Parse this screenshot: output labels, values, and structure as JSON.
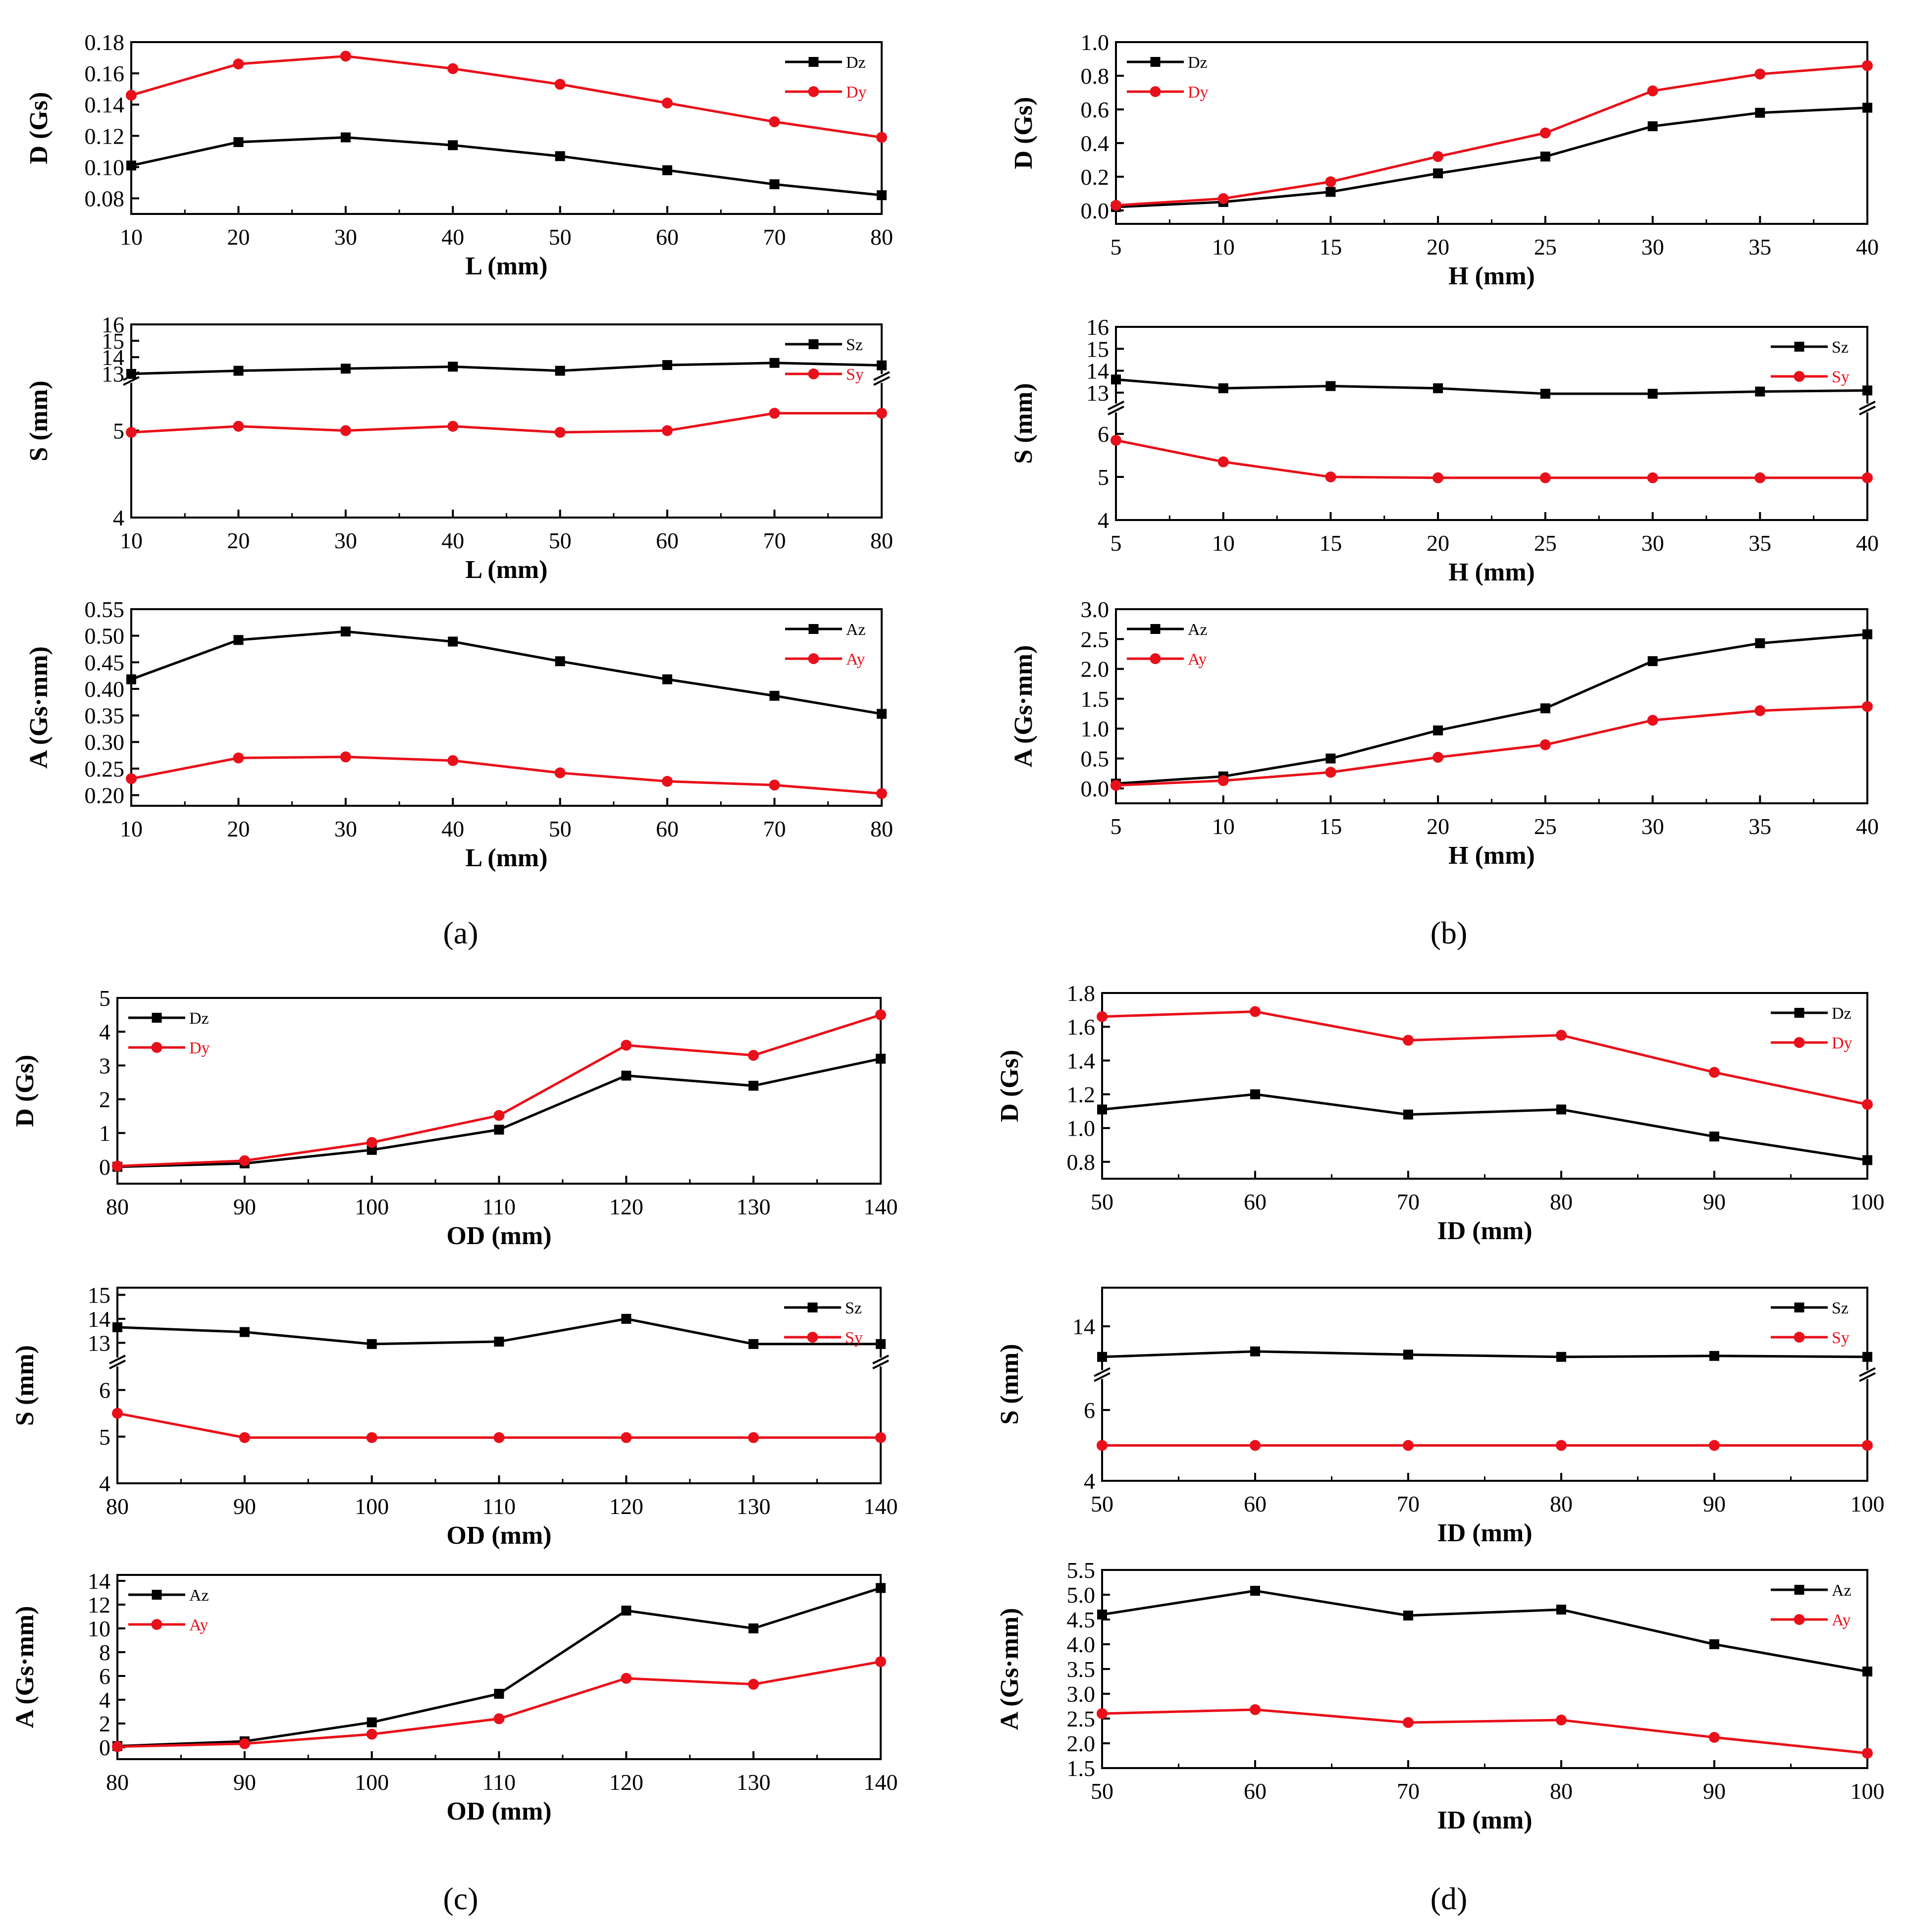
{
  "colors": {
    "series_z": "#000000",
    "series_y": "#e8101a",
    "axis": "#000000"
  },
  "captions": [
    "(a)",
    "(b)",
    "(c)",
    "(d)"
  ],
  "chart_data": [
    {
      "id": "a1",
      "type": "line",
      "panel": "(a)",
      "xlabel": "L (mm)",
      "ylabel": "D (Gs)",
      "x": [
        10,
        20,
        30,
        40,
        50,
        60,
        70,
        80
      ],
      "xlim": [
        10,
        80
      ],
      "xticks": [
        10,
        20,
        30,
        40,
        50,
        60,
        70,
        80
      ],
      "ylim": [
        0.07,
        0.18
      ],
      "yticks": [
        0.08,
        0.1,
        0.12,
        0.14,
        0.16,
        0.18
      ],
      "ytick_labels": [
        "0.08",
        "0.10",
        "0.12",
        "0.14",
        "0.16",
        "0.18"
      ],
      "legend": "top-right",
      "series": [
        {
          "name": "Dz",
          "marker": "square",
          "color": "#000000",
          "values": [
            0.101,
            0.116,
            0.119,
            0.114,
            0.107,
            0.098,
            0.089,
            0.082
          ]
        },
        {
          "name": "Dy",
          "marker": "circle",
          "color": "#e8101a",
          "values": [
            0.146,
            0.166,
            0.171,
            0.163,
            0.153,
            0.141,
            0.129,
            0.119
          ]
        }
      ]
    },
    {
      "id": "a2",
      "type": "line",
      "panel": "(a)",
      "xlabel": "L (mm)",
      "ylabel": "S (mm)",
      "x": [
        10,
        20,
        30,
        40,
        50,
        60,
        70,
        80
      ],
      "xlim": [
        10,
        80
      ],
      "xticks": [
        10,
        20,
        30,
        40,
        50,
        60,
        70,
        80
      ],
      "broken_axis": true,
      "lower_range": [
        4,
        5.6
      ],
      "upper_range": [
        12.7,
        16
      ],
      "lower_ticks": [
        4,
        5
      ],
      "upper_ticks": [
        13,
        14,
        15,
        16
      ],
      "legend": "top-right",
      "series": [
        {
          "name": "Sz",
          "marker": "square",
          "color": "#000000",
          "values": [
            12.98,
            13.17,
            13.3,
            13.42,
            13.17,
            13.52,
            13.65,
            13.5
          ]
        },
        {
          "name": "Sy",
          "marker": "circle",
          "color": "#e8101a",
          "values": [
            4.98,
            5.05,
            5.0,
            5.05,
            4.98,
            5.0,
            5.2,
            5.2
          ]
        }
      ]
    },
    {
      "id": "a3",
      "type": "line",
      "panel": "(a)",
      "xlabel": "L (mm)",
      "ylabel": "A (Gs·mm)",
      "x": [
        10,
        20,
        30,
        40,
        50,
        60,
        70,
        80
      ],
      "xlim": [
        10,
        80
      ],
      "xticks": [
        10,
        20,
        30,
        40,
        50,
        60,
        70,
        80
      ],
      "ylim": [
        0.18,
        0.55
      ],
      "yticks": [
        0.2,
        0.25,
        0.3,
        0.35,
        0.4,
        0.45,
        0.5,
        0.55
      ],
      "ytick_labels": [
        "0.20",
        "0.25",
        "0.30",
        "0.35",
        "0.40",
        "0.45",
        "0.50",
        "0.55"
      ],
      "legend": "top-right",
      "series": [
        {
          "name": "Az",
          "marker": "square",
          "color": "#000000",
          "values": [
            0.418,
            0.492,
            0.508,
            0.489,
            0.452,
            0.418,
            0.387,
            0.353
          ]
        },
        {
          "name": "Ay",
          "marker": "circle",
          "color": "#e8101a",
          "values": [
            0.231,
            0.27,
            0.272,
            0.265,
            0.242,
            0.226,
            0.219,
            0.203
          ]
        }
      ]
    },
    {
      "id": "b1",
      "type": "line",
      "panel": "(b)",
      "xlabel": "H (mm)",
      "ylabel": "D (Gs)",
      "x": [
        5,
        10,
        15,
        20,
        25,
        30,
        35,
        40
      ],
      "xlim": [
        5,
        40
      ],
      "xticks": [
        5,
        10,
        15,
        20,
        25,
        30,
        35,
        40
      ],
      "ylim": [
        -0.08,
        1.0
      ],
      "yticks": [
        0.0,
        0.2,
        0.4,
        0.6,
        0.8,
        1.0
      ],
      "ytick_labels": [
        "0.0",
        "0.2",
        "0.4",
        "0.6",
        "0.8",
        "1.0"
      ],
      "legend": "top-left",
      "series": [
        {
          "name": "Dz",
          "marker": "square",
          "color": "#000000",
          "values": [
            0.02,
            0.05,
            0.11,
            0.22,
            0.32,
            0.5,
            0.58,
            0.61
          ]
        },
        {
          "name": "Dy",
          "marker": "circle",
          "color": "#e8101a",
          "values": [
            0.03,
            0.07,
            0.17,
            0.32,
            0.46,
            0.71,
            0.81,
            0.86
          ]
        }
      ]
    },
    {
      "id": "b2",
      "type": "line",
      "panel": "(b)",
      "xlabel": "H (mm)",
      "ylabel": "S (mm)",
      "x": [
        5,
        10,
        15,
        20,
        25,
        30,
        35,
        40
      ],
      "xlim": [
        5,
        40
      ],
      "xticks": [
        5,
        10,
        15,
        20,
        25,
        30,
        35,
        40
      ],
      "broken_axis": true,
      "lower_range": [
        4,
        6.6
      ],
      "upper_range": [
        12.3,
        16
      ],
      "lower_ticks": [
        4,
        5,
        6
      ],
      "upper_ticks": [
        13,
        14,
        15,
        16
      ],
      "legend": "top-right",
      "series": [
        {
          "name": "Sz",
          "marker": "square",
          "color": "#000000",
          "values": [
            13.6,
            13.2,
            13.3,
            13.2,
            12.95,
            12.95,
            13.05,
            13.1
          ]
        },
        {
          "name": "Sy",
          "marker": "circle",
          "color": "#e8101a",
          "values": [
            5.85,
            5.35,
            5.0,
            4.98,
            4.98,
            4.98,
            4.98,
            4.98
          ]
        }
      ]
    },
    {
      "id": "b3",
      "type": "line",
      "panel": "(b)",
      "xlabel": "H (mm)",
      "ylabel": "A (Gs·mm)",
      "x": [
        5,
        10,
        15,
        20,
        25,
        30,
        35,
        40
      ],
      "xlim": [
        5,
        40
      ],
      "xticks": [
        5,
        10,
        15,
        20,
        25,
        30,
        35,
        40
      ],
      "ylim": [
        -0.25,
        3.0
      ],
      "yticks": [
        0.0,
        0.5,
        1.0,
        1.5,
        2.0,
        2.5,
        3.0
      ],
      "ytick_labels": [
        "0.0",
        "0.5",
        "1.0",
        "1.5",
        "2.0",
        "2.5",
        "3.0"
      ],
      "legend": "top-left",
      "series": [
        {
          "name": "Az",
          "marker": "square",
          "color": "#000000",
          "values": [
            0.08,
            0.2,
            0.5,
            0.97,
            1.34,
            2.13,
            2.43,
            2.58
          ]
        },
        {
          "name": "Ay",
          "marker": "circle",
          "color": "#e8101a",
          "values": [
            0.05,
            0.13,
            0.27,
            0.52,
            0.73,
            1.14,
            1.3,
            1.37
          ]
        }
      ]
    },
    {
      "id": "c1",
      "type": "line",
      "panel": "(c)",
      "xlabel": "OD (mm)",
      "ylabel": "D (Gs)",
      "x": [
        80,
        90,
        100,
        110,
        120,
        130,
        140
      ],
      "xlim": [
        80,
        140
      ],
      "xticks": [
        80,
        90,
        100,
        110,
        120,
        130,
        140
      ],
      "ylim": [
        -0.5,
        5
      ],
      "yticks": [
        0,
        1,
        2,
        3,
        4,
        5
      ],
      "ytick_labels": [
        "0",
        "1",
        "2",
        "3",
        "4",
        "5"
      ],
      "legend": "top-left",
      "series": [
        {
          "name": "Dz",
          "marker": "square",
          "color": "#000000",
          "values": [
            0.0,
            0.1,
            0.5,
            1.1,
            2.7,
            2.4,
            3.2
          ]
        },
        {
          "name": "Dy",
          "marker": "circle",
          "color": "#e8101a",
          "values": [
            0.02,
            0.18,
            0.72,
            1.52,
            3.6,
            3.3,
            4.5
          ]
        }
      ]
    },
    {
      "id": "c2",
      "type": "line",
      "panel": "(c)",
      "xlabel": "OD (mm)",
      "ylabel": "S (mm)",
      "x": [
        80,
        90,
        100,
        110,
        120,
        130,
        140
      ],
      "xlim": [
        80,
        140
      ],
      "xticks": [
        80,
        90,
        100,
        110,
        120,
        130,
        140
      ],
      "broken_axis": true,
      "lower_range": [
        4,
        6.6
      ],
      "upper_range": [
        12.2,
        15.3
      ],
      "lower_ticks": [
        4,
        5,
        6
      ],
      "upper_ticks": [
        13,
        14,
        15
      ],
      "legend": "top-right",
      "series": [
        {
          "name": "Sz",
          "marker": "square",
          "color": "#000000",
          "values": [
            13.65,
            13.45,
            12.95,
            13.05,
            14.0,
            12.95,
            12.95
          ]
        },
        {
          "name": "Sy",
          "marker": "circle",
          "color": "#e8101a",
          "values": [
            5.5,
            4.98,
            4.98,
            4.98,
            4.98,
            4.98,
            4.98
          ]
        }
      ]
    },
    {
      "id": "c3",
      "type": "line",
      "panel": "(c)",
      "xlabel": "OD (mm)",
      "ylabel": "A (Gs·mm)",
      "x": [
        80,
        90,
        100,
        110,
        120,
        130,
        140
      ],
      "xlim": [
        80,
        140
      ],
      "xticks": [
        80,
        90,
        100,
        110,
        120,
        130,
        140
      ],
      "ylim": [
        -1,
        14.5
      ],
      "yticks": [
        0,
        2,
        4,
        6,
        8,
        10,
        12,
        14
      ],
      "ytick_labels": [
        "0",
        "2",
        "4",
        "6",
        "8",
        "10",
        "12",
        "14"
      ],
      "legend": "top-left",
      "series": [
        {
          "name": "Az",
          "marker": "square",
          "color": "#000000",
          "values": [
            0.1,
            0.5,
            2.1,
            4.5,
            11.5,
            10.0,
            13.4
          ]
        },
        {
          "name": "Ay",
          "marker": "circle",
          "color": "#e8101a",
          "values": [
            0.05,
            0.3,
            1.1,
            2.4,
            5.8,
            5.3,
            7.2
          ]
        }
      ]
    },
    {
      "id": "d1",
      "type": "line",
      "panel": "(d)",
      "xlabel": "ID (mm)",
      "ylabel": "D (Gs)",
      "x": [
        50,
        60,
        70,
        80,
        90,
        100
      ],
      "xlim": [
        50,
        100
      ],
      "xticks": [
        50,
        60,
        70,
        80,
        90,
        100
      ],
      "ylim": [
        0.7,
        1.8
      ],
      "yticks": [
        0.8,
        1.0,
        1.2,
        1.4,
        1.6,
        1.8
      ],
      "ytick_labels": [
        "0.8",
        "1.0",
        "1.2",
        "1.4",
        "1.6",
        "1.8"
      ],
      "legend": "top-right",
      "series": [
        {
          "name": "Dz",
          "marker": "square",
          "color": "#000000",
          "values": [
            1.11,
            1.2,
            1.08,
            1.11,
            0.95,
            0.81
          ]
        },
        {
          "name": "Dy",
          "marker": "circle",
          "color": "#e8101a",
          "values": [
            1.66,
            1.69,
            1.52,
            1.55,
            1.33,
            1.14
          ]
        }
      ]
    },
    {
      "id": "d2",
      "type": "line",
      "panel": "(d)",
      "xlabel": "ID (mm)",
      "ylabel": "S (mm)",
      "x": [
        50,
        60,
        70,
        80,
        90,
        100
      ],
      "xlim": [
        50,
        100
      ],
      "xticks": [
        50,
        60,
        70,
        80,
        90,
        100
      ],
      "broken_axis": true,
      "lower_range": [
        4,
        7.0
      ],
      "upper_range": [
        12.5,
        15.2
      ],
      "lower_ticks": [
        4,
        6
      ],
      "upper_ticks": [
        14
      ],
      "legend": "top-right",
      "series": [
        {
          "name": "Sz",
          "marker": "square",
          "color": "#000000",
          "values": [
            13.05,
            13.22,
            13.12,
            13.05,
            13.08,
            13.05
          ]
        },
        {
          "name": "Sy",
          "marker": "circle",
          "color": "#e8101a",
          "values": [
            5.0,
            5.0,
            5.0,
            5.0,
            5.0,
            5.0
          ]
        }
      ]
    },
    {
      "id": "d3",
      "type": "line",
      "panel": "(d)",
      "xlabel": "ID (mm)",
      "ylabel": "A (Gs·mm)",
      "x": [
        50,
        60,
        70,
        80,
        90,
        100
      ],
      "xlim": [
        50,
        100
      ],
      "xticks": [
        50,
        60,
        70,
        80,
        90,
        100
      ],
      "ylim": [
        1.5,
        5.5
      ],
      "yticks": [
        1.5,
        2.0,
        2.5,
        3.0,
        3.5,
        4.0,
        4.5,
        5.0,
        5.5
      ],
      "ytick_labels": [
        "1.5",
        "2.0",
        "2.5",
        "3.0",
        "3.5",
        "4.0",
        "4.5",
        "5.0",
        "5.5"
      ],
      "legend": "top-right",
      "series": [
        {
          "name": "Az",
          "marker": "square",
          "color": "#000000",
          "values": [
            4.6,
            5.08,
            4.58,
            4.7,
            4.0,
            3.45
          ]
        },
        {
          "name": "Ay",
          "marker": "circle",
          "color": "#e8101a",
          "values": [
            2.6,
            2.68,
            2.42,
            2.47,
            2.12,
            1.8
          ]
        }
      ]
    }
  ]
}
